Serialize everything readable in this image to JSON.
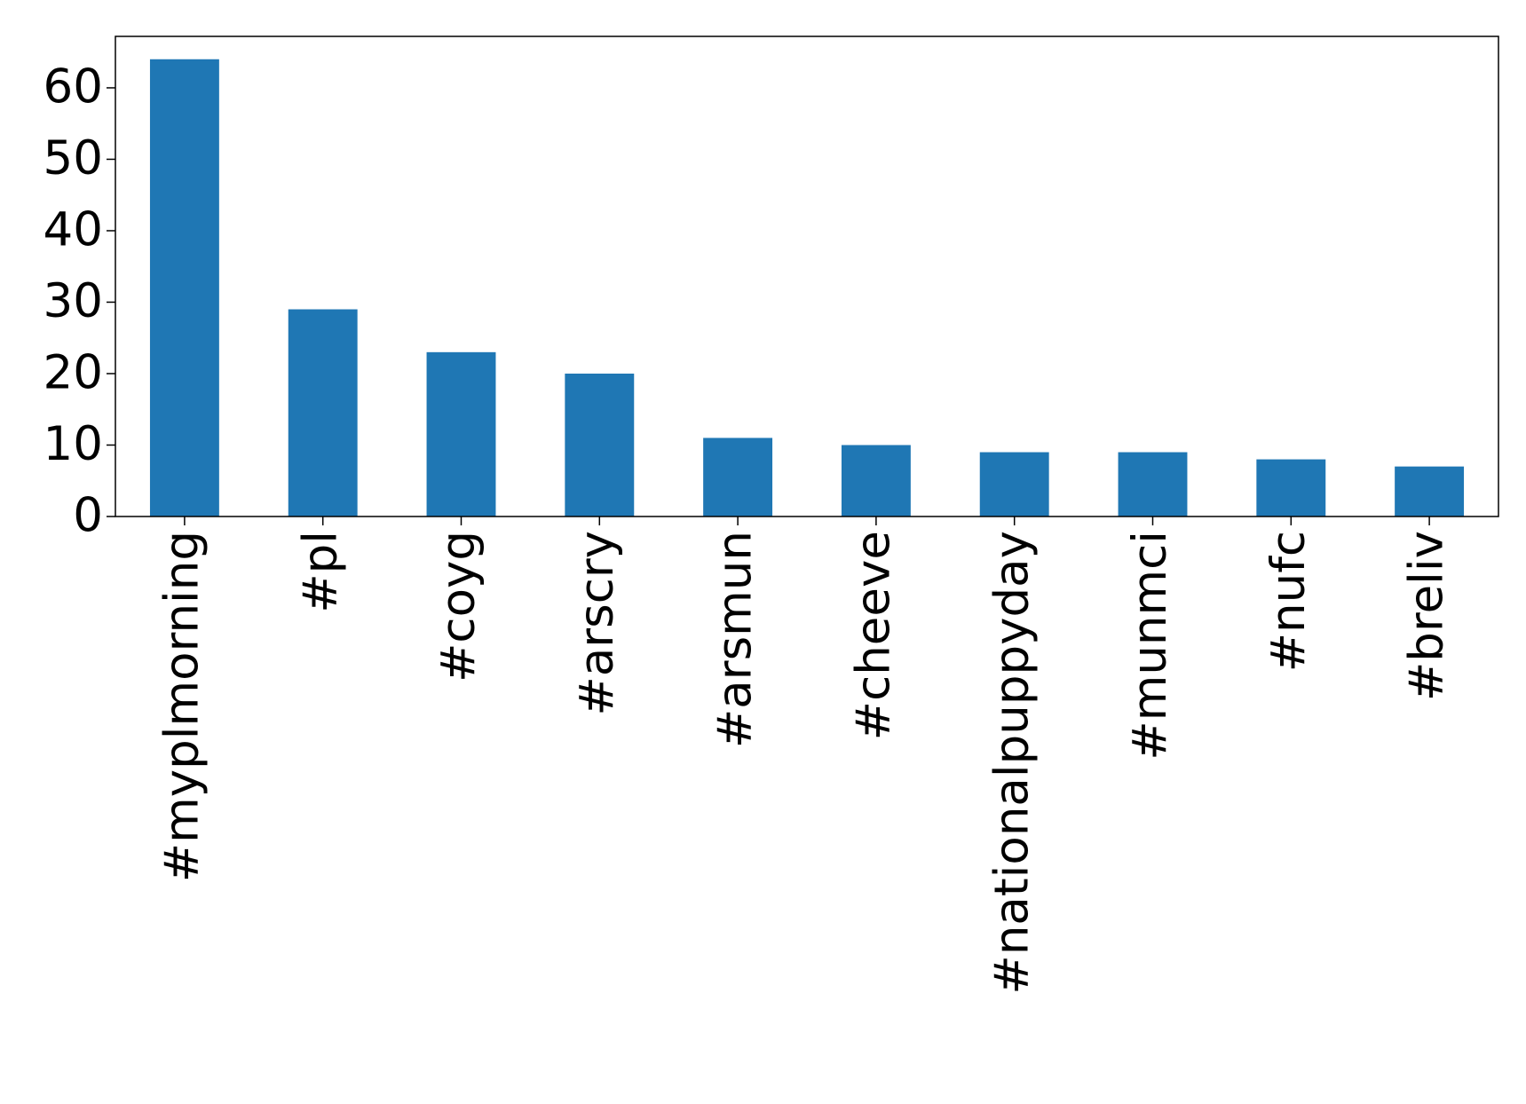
{
  "chart_data": {
    "type": "bar",
    "categories": [
      "#myplmorning",
      "#pl",
      "#coyg",
      "#arscry",
      "#arsmun",
      "#cheeve",
      "#nationalpuppyday",
      "#munmci",
      "#nufc",
      "#breliv"
    ],
    "values": [
      64,
      29,
      23,
      20,
      11,
      10,
      9,
      9,
      8,
      7
    ],
    "color": "#1f77b4",
    "ylim": [
      0,
      67.2
    ],
    "yticks": [
      0,
      10,
      20,
      30,
      40,
      50,
      60
    ],
    "grid": false
  }
}
